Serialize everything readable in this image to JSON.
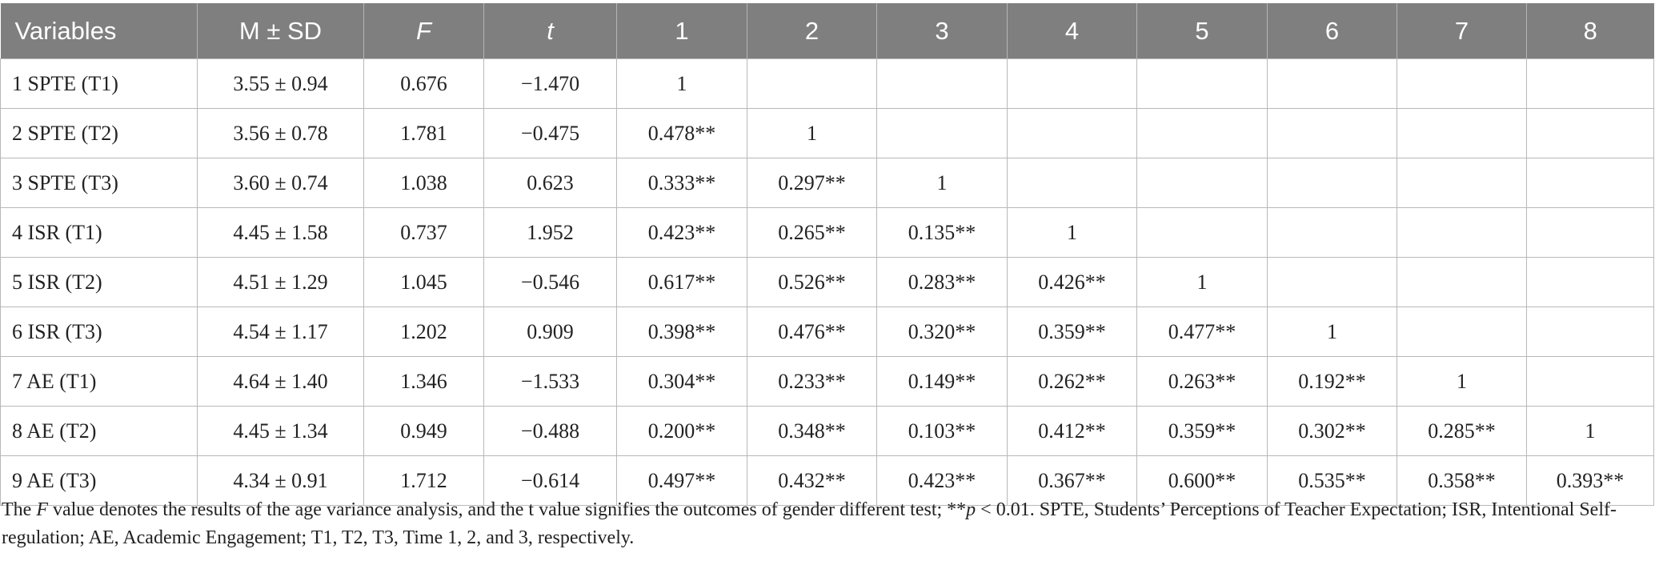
{
  "table": {
    "headers": [
      "Variables",
      "M ± SD",
      "F",
      "t",
      "1",
      "2",
      "3",
      "4",
      "5",
      "6",
      "7",
      "8"
    ],
    "rows": [
      [
        "1 SPTE (T1)",
        "3.55 ± 0.94",
        "0.676",
        "−1.470",
        "1",
        "",
        "",
        "",
        "",
        "",
        "",
        ""
      ],
      [
        "2 SPTE (T2)",
        "3.56 ± 0.78",
        "1.781",
        "−0.475",
        "0.478**",
        "1",
        "",
        "",
        "",
        "",
        "",
        ""
      ],
      [
        "3 SPTE (T3)",
        "3.60 ± 0.74",
        "1.038",
        "0.623",
        "0.333**",
        "0.297**",
        "1",
        "",
        "",
        "",
        "",
        ""
      ],
      [
        "4 ISR (T1)",
        "4.45 ± 1.58",
        "0.737",
        "1.952",
        "0.423**",
        "0.265**",
        "0.135**",
        "1",
        "",
        "",
        "",
        ""
      ],
      [
        "5 ISR (T2)",
        "4.51 ± 1.29",
        "1.045",
        "−0.546",
        "0.617**",
        "0.526**",
        "0.283**",
        "0.426**",
        "1",
        "",
        "",
        ""
      ],
      [
        "6 ISR (T3)",
        "4.54 ± 1.17",
        "1.202",
        "0.909",
        "0.398**",
        "0.476**",
        "0.320**",
        "0.359**",
        "0.477**",
        "1",
        "",
        ""
      ],
      [
        "7 AE (T1)",
        "4.64 ± 1.40",
        "1.346",
        "−1.533",
        "0.304**",
        "0.233**",
        "0.149**",
        "0.262**",
        "0.263**",
        "0.192**",
        "1",
        ""
      ],
      [
        "8 AE (T2)",
        "4.45 ± 1.34",
        "0.949",
        "−0.488",
        "0.200**",
        "0.348**",
        "0.103**",
        "0.412**",
        "0.359**",
        "0.302**",
        "0.285**",
        "1"
      ],
      [
        "9 AE (T3)",
        "4.34 ± 0.91",
        "1.712",
        "−0.614",
        "0.497**",
        "0.432**",
        "0.423**",
        "0.367**",
        "0.600**",
        "0.535**",
        "0.358**",
        "0.393**"
      ]
    ]
  },
  "footnote": {
    "part1": "The ",
    "part2": "F",
    "part3": " value denotes the results of the age variance analysis, and the t value signifies the outcomes of gender different test; **",
    "part4": "p",
    "part5": " < 0.01. SPTE, Students’ Perceptions of Teacher Expectation; ISR, Intentional Self-regulation; AE, Academic Engagement; T1, T2, T3, Time 1, 2, and 3, respectively."
  },
  "colors": {
    "header_bg": "#7f7f7f",
    "header_text": "#ffffff",
    "grid": "#b8b8b8"
  }
}
